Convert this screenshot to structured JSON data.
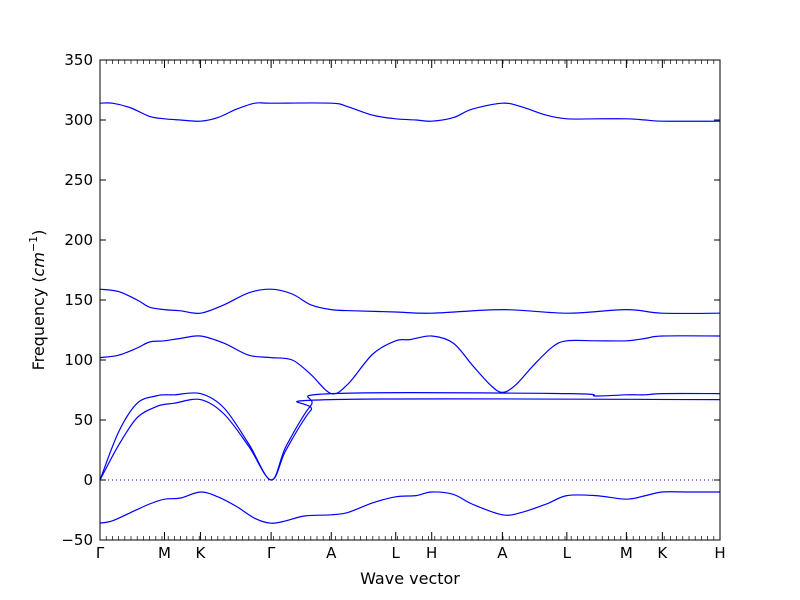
{
  "chart_data": {
    "type": "line",
    "title": "",
    "xlabel": "Wave vector",
    "ylabel": {
      "prefix": "Frequency (",
      "unit": "cm",
      "exponent": "−1",
      "suffix": ")"
    },
    "ylim": [
      -50,
      350
    ],
    "yticks": [
      -50,
      0,
      50,
      100,
      150,
      200,
      250,
      300,
      350
    ],
    "grid": false,
    "legend": "none",
    "line_color": "#0000ff",
    "zero_line": {
      "y": 0,
      "style": "dotted",
      "color": "#0000ff"
    },
    "xlim": [
      0,
      100
    ],
    "high_symmetry_points": [
      {
        "label": "Γ",
        "x": 0
      },
      {
        "label": "M",
        "x": 10.4
      },
      {
        "label": "K",
        "x": 16.2
      },
      {
        "label": "Γ",
        "x": 27.6
      },
      {
        "label": "A",
        "x": 37.3
      },
      {
        "label": "L",
        "x": 47.7
      },
      {
        "label": "H",
        "x": 53.5
      },
      {
        "label": "A",
        "x": 64.9
      },
      {
        "label": "L",
        "x": 75.3
      },
      {
        "label": "M",
        "x": 84.9
      },
      {
        "label": "K",
        "x": 90.7
      },
      {
        "label": "H",
        "x": 100
      }
    ],
    "series": [
      {
        "x": [
          0,
          2,
          5,
          8,
          10.4,
          13,
          16.2,
          19,
          22,
          25,
          27.6,
          30,
          33,
          37.3,
          40,
          44,
          47.7,
          51,
          53.5,
          57,
          60,
          64.9,
          68,
          72,
          75.3,
          80,
          84.9,
          88,
          90.7,
          95,
          100
        ],
        "y": [
          -36,
          -34,
          -27,
          -20,
          -16,
          -15,
          -10,
          -14,
          -22,
          -32,
          -36,
          -34,
          -30,
          -29,
          -27,
          -19,
          -14,
          -13,
          -10,
          -12,
          -20,
          -29,
          -27,
          -20,
          -13,
          -13,
          -16,
          -13,
          -10,
          -10,
          -10
        ]
      },
      {
        "x": [
          0,
          3,
          6,
          9,
          10.4,
          12,
          16.2,
          20,
          24,
          27.6,
          30,
          34,
          37.3,
          100
        ],
        "y": [
          0,
          29,
          52,
          61,
          63,
          64,
          67,
          55,
          28,
          0,
          25,
          58,
          67,
          67
        ]
      },
      {
        "x": [
          0,
          3,
          6,
          9,
          10.4,
          12,
          16.2,
          20,
          24,
          27.6,
          30,
          34,
          37.3,
          75.3,
          80,
          84.9,
          88,
          90.7,
          100
        ],
        "y": [
          0,
          40,
          64,
          70,
          71,
          71,
          72,
          60,
          30,
          0,
          28,
          62,
          72,
          72,
          70,
          71,
          71,
          72,
          72
        ]
      },
      {
        "x": [
          0,
          3,
          6,
          8,
          10.4,
          13,
          16.2,
          20,
          24,
          27.6,
          31,
          34,
          37.3,
          40,
          44,
          47.7,
          50,
          53.5,
          57,
          60,
          63,
          64.9,
          67,
          70,
          73,
          75.3,
          80,
          84.9,
          88,
          90.7,
          100
        ],
        "y": [
          102,
          104,
          110,
          115,
          116,
          118,
          120,
          114,
          104,
          102,
          100,
          88,
          72,
          80,
          105,
          116,
          117,
          120,
          114,
          96,
          79,
          73,
          79,
          96,
          111,
          116,
          116,
          116,
          118,
          120,
          120
        ]
      },
      {
        "x": [
          0,
          3,
          6,
          8,
          10.4,
          13,
          16.2,
          20,
          24,
          27.6,
          31,
          34,
          37.3,
          41,
          47.7,
          53.5,
          64.9,
          75.3,
          84.9,
          90.7,
          100
        ],
        "y": [
          159,
          157,
          150,
          144,
          142,
          141,
          139,
          146,
          156,
          159,
          155,
          146,
          142,
          141,
          140,
          139,
          142,
          139,
          142,
          139,
          139
        ]
      },
      {
        "x": [
          0,
          2,
          5,
          8,
          10.4,
          13,
          16.2,
          19,
          22,
          25,
          27.6,
          37.3,
          40,
          44,
          47.7,
          51,
          53.5,
          57,
          60,
          64.9,
          68,
          72,
          75.3,
          80,
          84.9,
          88,
          90.7,
          100
        ],
        "y": [
          314,
          314,
          310,
          303,
          301,
          300,
          299,
          302,
          309,
          314,
          314,
          314,
          311,
          304,
          301,
          300,
          299,
          302,
          309,
          314,
          311,
          304,
          301,
          301,
          301,
          300,
          299,
          299
        ]
      }
    ]
  }
}
